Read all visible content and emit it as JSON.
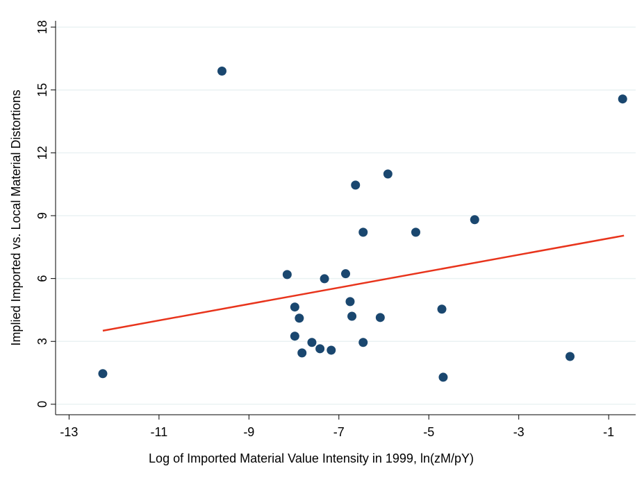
{
  "chart_data": {
    "type": "scatter",
    "x_label": "Log of Imported Material Value Intensity in 1999, ln(zM/pY)",
    "y_label": "Implied Imported vs. Local Material Distortions",
    "x": [
      -12.25,
      -9.6,
      -0.69,
      -8.15,
      -7.98,
      -7.88,
      -7.98,
      -7.82,
      -7.6,
      -7.42,
      -7.17,
      -7.32,
      -6.85,
      -6.75,
      -6.71,
      -6.63,
      -6.46,
      -6.46,
      -6.08,
      -5.91,
      -5.29,
      -4.71,
      -4.68,
      -3.98,
      -1.86
    ],
    "y": [
      1.46,
      15.9,
      14.57,
      6.19,
      4.64,
      4.11,
      3.25,
      2.45,
      2.95,
      2.65,
      2.58,
      5.99,
      6.23,
      4.9,
      4.2,
      10.46,
      8.21,
      2.95,
      4.14,
      10.99,
      8.21,
      4.54,
      1.29,
      8.81,
      2.28
    ],
    "color": "#1a476f",
    "fit_line": {
      "x": [
        -12.25,
        -0.66
      ],
      "y": [
        3.51,
        8.05
      ],
      "color": "#e8341c"
    },
    "xlim": [
      -13.3,
      -0.4
    ],
    "ylim": [
      -0.5,
      18.3
    ],
    "xticks": [
      -13,
      -11,
      -9,
      -7,
      -5,
      -3,
      -1
    ],
    "yticks": [
      0,
      3,
      6,
      9,
      12,
      15,
      18
    ],
    "grid": true
  }
}
